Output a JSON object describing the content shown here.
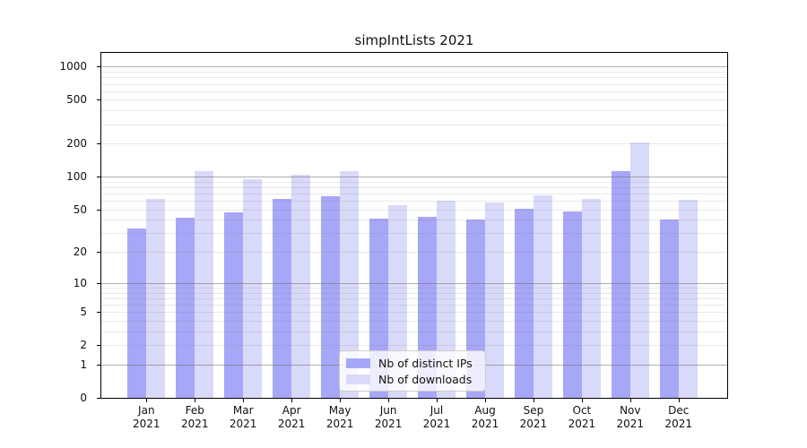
{
  "chart_data": {
    "type": "bar",
    "title": "simpIntLists 2021",
    "categories": [
      "Jan",
      "Feb",
      "Mar",
      "Apr",
      "May",
      "Jun",
      "Jul",
      "Aug",
      "Sep",
      "Oct",
      "Nov",
      "Dec"
    ],
    "category_sublabel": "2021",
    "series": [
      {
        "name": "Nb of distinct IPs",
        "color": "#a7a7f7",
        "values": [
          33,
          42,
          47,
          63,
          66,
          41,
          43,
          40,
          51,
          48,
          113,
          40
        ]
      },
      {
        "name": "Nb of downloads",
        "color": "#d9d9f9",
        "values": [
          62,
          113,
          94,
          104,
          113,
          55,
          60,
          58,
          68,
          63,
          205,
          61
        ]
      }
    ],
    "y_axis": {
      "scale": "log10(1+x)",
      "tick_labels": [
        1000,
        500,
        200,
        100,
        50,
        20,
        10,
        5,
        2,
        1,
        0
      ],
      "major_grid_values": [
        1,
        10,
        100,
        1000
      ],
      "ylim": [
        0,
        1320
      ],
      "grid": true
    },
    "legend": {
      "position": "inset lower-center",
      "entries": [
        "Nb of distinct IPs",
        "Nb of downloads"
      ]
    },
    "colors": {
      "bar_ips": "#a7a7f7",
      "bar_downloads": "#d9d9f9",
      "grid_major": "#b0b0b0",
      "grid_minor": "#ebebeb",
      "frame": "#000000",
      "text": "#111111"
    }
  }
}
